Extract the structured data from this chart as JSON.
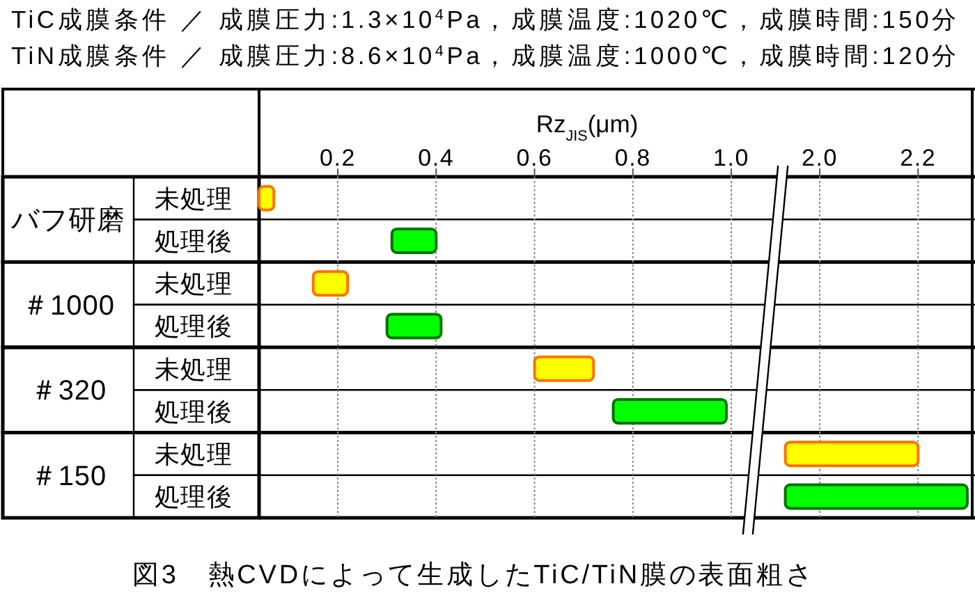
{
  "chart_data": [
    {
      "type": "bar",
      "orientation": "horizontal",
      "title": "TiC成膜条件 ／ 成膜圧力:1.3×10$^{4}$Pa，成膜温度:1020℃，成膜時間:150分",
      "subtitle": "TiN成膜条件 ／ 成膜圧力:8.6×10$^{4}$Pa，成膜温度:1000℃，成膜時間:120分",
      "xlabel": "Rz$_{JIS}$(μm)",
      "categories": [
        "未処理",
        "処理後",
        "未処理",
        "処理後",
        "未処理",
        "処理後",
        "未処理",
        "処理後"
      ],
      "base": [
        0.04,
        0.31,
        0.15,
        0.3,
        0.6,
        0.76,
        null,
        null
      ],
      "values": [
        0.03,
        0.09,
        0.07,
        0.11,
        0.12,
        0.23,
        null,
        null
      ],
      "colors": [
        "#ffff00",
        "#00ff00",
        "#ffff00",
        "#00ff00",
        "#ffff00",
        "#00ff00",
        null,
        null
      ],
      "xlim": [
        0.04,
        1.06
      ],
      "xticks": [
        0.2,
        0.4,
        0.6,
        0.8,
        {
          "value": 1,
          "label": "1.0"
        }
      ],
      "grid": true,
      "annotations": [
        "バフ研磨",
        "＃1000",
        "＃320",
        "＃150",
        "図3　熱CVDによって生成したTiC/TiN膜の表面粗さ"
      ]
    },
    {
      "type": "bar",
      "orientation": "horizontal",
      "categories": [
        null,
        null,
        null,
        null,
        null,
        null,
        null,
        null
      ],
      "base": [
        null,
        null,
        null,
        null,
        null,
        null,
        1.93,
        1.93
      ],
      "values": [
        null,
        null,
        null,
        null,
        null,
        null,
        0.27,
        0.37
      ],
      "colors": [
        null,
        null,
        null,
        null,
        null,
        null,
        "#ffff00",
        "#00ff00"
      ],
      "xlim": [
        1.9,
        2.31
      ],
      "xticks": [
        {
          "value": 2,
          "label": "2.0"
        },
        2.2
      ],
      "grid": true,
      "tick_labels": "x"
    }
  ]
}
